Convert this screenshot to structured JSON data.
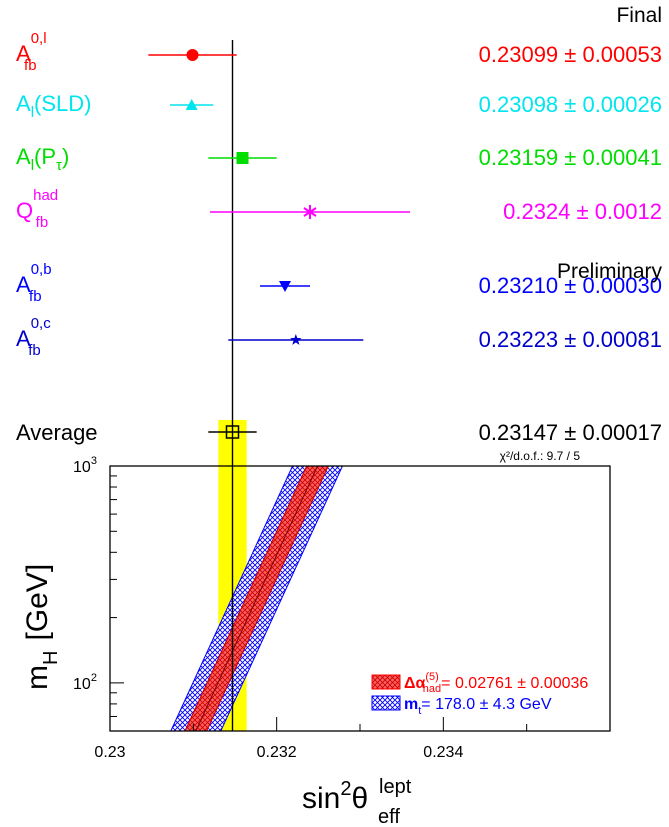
{
  "chart_data": {
    "type": "scatter",
    "x_range": [
      0.23,
      0.236
    ],
    "reference_line": 0.23147,
    "sections": {
      "final": "Final",
      "preliminary": "Preliminary"
    },
    "measurements": [
      {
        "label_main": "A",
        "label_sup": "0,l",
        "label_sub": "fb",
        "value": 0.23099,
        "err": 0.00053,
        "text_value": "0.23099",
        "text_err": "0.00053",
        "color": "#ff0000",
        "marker": "circle"
      },
      {
        "label_main": "A",
        "label_sub": "l",
        "label_tail": "(SLD)",
        "value": 0.23098,
        "err": 0.00026,
        "text_value": "0.23098",
        "text_err": "0.00026",
        "color": "#00e5ee",
        "marker": "triangle-up"
      },
      {
        "label_main": "A",
        "label_sub": "l",
        "label_tail": "(P",
        "label_sub2": "τ",
        "label_tail2": ")",
        "value": 0.23159,
        "err": 0.00041,
        "text_value": "0.23159",
        "text_err": "0.00041",
        "color": "#00dd00",
        "marker": "square"
      },
      {
        "label_main": "Q",
        "label_sup": "had",
        "label_sub": "fb",
        "value": 0.2324,
        "err": 0.0012,
        "text_value": "0.2324",
        "text_err": "0.0012",
        "color": "#ff00ff",
        "marker": "star"
      },
      {
        "label_main": "A",
        "label_sup": "0,b",
        "label_sub": "fb",
        "value": 0.2321,
        "err": 0.0003,
        "text_value": "0.23210",
        "text_err": "0.00030",
        "color": "#0000ff",
        "marker": "triangle-down"
      },
      {
        "label_main": "A",
        "label_sup": "0,c",
        "label_sub": "fb",
        "value": 0.23223,
        "err": 0.00081,
        "text_value": "0.23223",
        "text_err": "0.00081",
        "color": "#0000cc",
        "marker": "star5"
      }
    ],
    "average": {
      "label": "Average",
      "value": 0.23147,
      "err": 0.00017,
      "text_value": "0.23147",
      "text_err": "0.00017",
      "color": "#000000",
      "band_color": "#ffff00"
    },
    "chi2": "χ²/d.o.f.: 9.7 / 5",
    "pm_symbol": "±",
    "lower_panel": {
      "xlabel_main": "sin",
      "xlabel_sup": "2",
      "xlabel_theta": "θ",
      "xlabel_sup2": "lept",
      "xlabel_sub": "eff",
      "ylabel_main": "m",
      "ylabel_sub": "H",
      "ylabel_unit": "[GeV]",
      "y_scale": "log",
      "ylim": [
        60,
        1000
      ],
      "xlim": [
        0.23,
        0.236
      ],
      "x_ticks": [
        "0.23",
        "0.232",
        "0.234"
      ],
      "y_ticks": [
        {
          "base": "10",
          "exp": "2",
          "value": 100
        },
        {
          "base": "10",
          "exp": "3",
          "value": 1000
        }
      ],
      "legend": [
        {
          "text_main": "Δα",
          "text_sup": "(5)",
          "text_sub": "had",
          "text_rest": "= 0.02761 ± 0.00036",
          "color": "#ff0000"
        },
        {
          "text_main": "m",
          "text_sub": "t",
          "text_rest": "= 178.0 ± 4.3 GeV",
          "color": "#0000ff"
        }
      ],
      "band_centre_x_at_mH": [
        {
          "mH": 60,
          "x": 0.23103
        },
        {
          "mH": 1000,
          "x": 0.23249
        }
      ],
      "inner_band_half_width": 0.00013,
      "outer_band_half_width": 0.0003
    }
  }
}
